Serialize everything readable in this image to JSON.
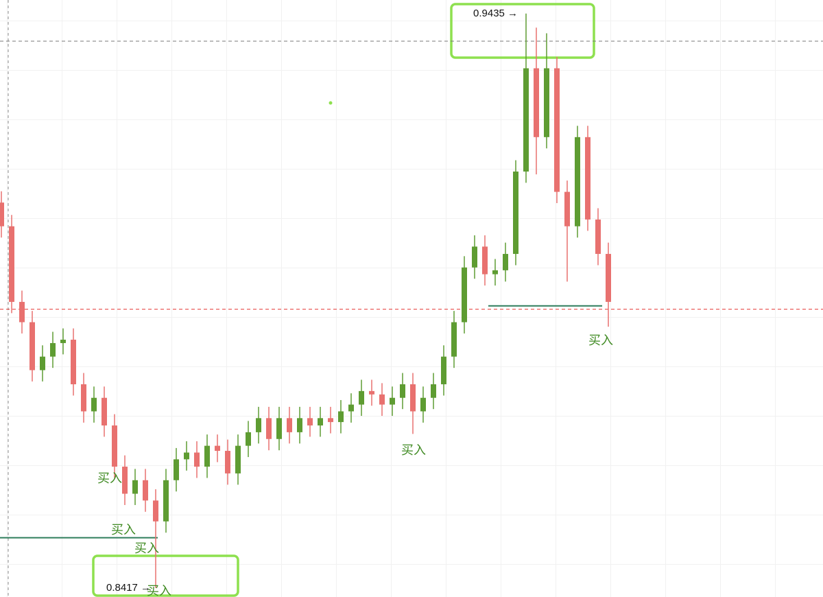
{
  "chart_data": {
    "type": "candlestick",
    "ylim": [
      0.8401,
      0.9459
    ],
    "up_color": "#5e9c32",
    "down_color": "#e8716f",
    "open": [
      0.91,
      0.9058,
      0.8924,
      0.8888,
      0.8803,
      0.8827,
      0.8851,
      0.8857,
      0.8778,
      0.873,
      0.8754,
      0.8705,
      0.8632,
      0.8584,
      0.8608,
      0.8572,
      0.8535,
      0.8608,
      0.8645,
      0.8657,
      0.8632,
      0.8669,
      0.866,
      0.862,
      0.8669,
      0.8693,
      0.8718,
      0.8681,
      0.8718,
      0.8693,
      0.8718,
      0.8705,
      0.8718,
      0.8711,
      0.873,
      0.8742,
      0.8766,
      0.876,
      0.8742,
      0.8754,
      0.8778,
      0.873,
      0.8754,
      0.8778,
      0.8827,
      0.8888,
      0.8985,
      0.9022,
      0.8973,
      0.898,
      0.9009,
      0.9155,
      0.9338,
      0.9216,
      0.9338,
      0.9119,
      0.9058,
      0.9216,
      0.907,
      0.9009
    ],
    "high": [
      0.912,
      0.9078,
      0.8944,
      0.8908,
      0.8847,
      0.8871,
      0.8877,
      0.8877,
      0.8798,
      0.8774,
      0.8774,
      0.8725,
      0.8652,
      0.8628,
      0.8628,
      0.8592,
      0.8628,
      0.8665,
      0.8677,
      0.8677,
      0.8689,
      0.8689,
      0.868,
      0.8689,
      0.8713,
      0.8738,
      0.8738,
      0.8738,
      0.8738,
      0.8738,
      0.8738,
      0.8738,
      0.8738,
      0.875,
      0.8762,
      0.8786,
      0.8786,
      0.878,
      0.8774,
      0.8798,
      0.8798,
      0.8774,
      0.8798,
      0.8847,
      0.8908,
      0.9005,
      0.9042,
      0.9042,
      0.9,
      0.9029,
      0.9175,
      0.9435,
      0.941,
      0.94,
      0.9358,
      0.9139,
      0.9236,
      0.9236,
      0.909,
      0.9029
    ],
    "low": [
      0.9038,
      0.8904,
      0.8868,
      0.8783,
      0.8783,
      0.8807,
      0.8831,
      0.8758,
      0.871,
      0.871,
      0.8685,
      0.8612,
      0.8564,
      0.8564,
      0.8552,
      0.8417,
      0.8515,
      0.8588,
      0.8625,
      0.8612,
      0.8612,
      0.864,
      0.86,
      0.86,
      0.8649,
      0.8673,
      0.8661,
      0.8661,
      0.8673,
      0.8673,
      0.8685,
      0.8685,
      0.8691,
      0.8691,
      0.871,
      0.8722,
      0.874,
      0.8722,
      0.8722,
      0.8734,
      0.869,
      0.871,
      0.8734,
      0.8758,
      0.8807,
      0.8868,
      0.8965,
      0.8953,
      0.8953,
      0.896,
      0.8989,
      0.9135,
      0.915,
      0.9196,
      0.9099,
      0.896,
      0.9038,
      0.905,
      0.8989,
      0.888
    ],
    "close": [
      0.9058,
      0.8924,
      0.8888,
      0.8803,
      0.8827,
      0.8851,
      0.8857,
      0.8778,
      0.873,
      0.8754,
      0.8705,
      0.8632,
      0.8584,
      0.8608,
      0.8572,
      0.8535,
      0.8608,
      0.8645,
      0.8657,
      0.8632,
      0.8669,
      0.866,
      0.862,
      0.8669,
      0.8693,
      0.8718,
      0.8681,
      0.8718,
      0.8693,
      0.8718,
      0.8705,
      0.8718,
      0.8711,
      0.873,
      0.8742,
      0.8766,
      0.876,
      0.8742,
      0.8754,
      0.8778,
      0.873,
      0.8754,
      0.8778,
      0.8827,
      0.8888,
      0.8985,
      0.9022,
      0.8973,
      0.898,
      0.9009,
      0.9155,
      0.9338,
      0.9216,
      0.9338,
      0.9119,
      0.9058,
      0.9216,
      0.907,
      0.9009,
      0.8924
    ],
    "price_lines": [
      {
        "value": 0.9386,
        "color": "#777777",
        "dashed": true
      },
      {
        "value": 0.8911,
        "color": "#e53935",
        "dashed": true
      },
      {
        "value": 0.8506,
        "color": "#2e7d5b",
        "dashed": false
      },
      {
        "value": 0.8917,
        "color": "#2e7d5b",
        "dashed": false
      }
    ],
    "annotations": [
      "0.9435 →",
      "0.8417 →"
    ],
    "signals": [
      "买入",
      "买入",
      "买入",
      "买入",
      "买入",
      "买入"
    ]
  }
}
